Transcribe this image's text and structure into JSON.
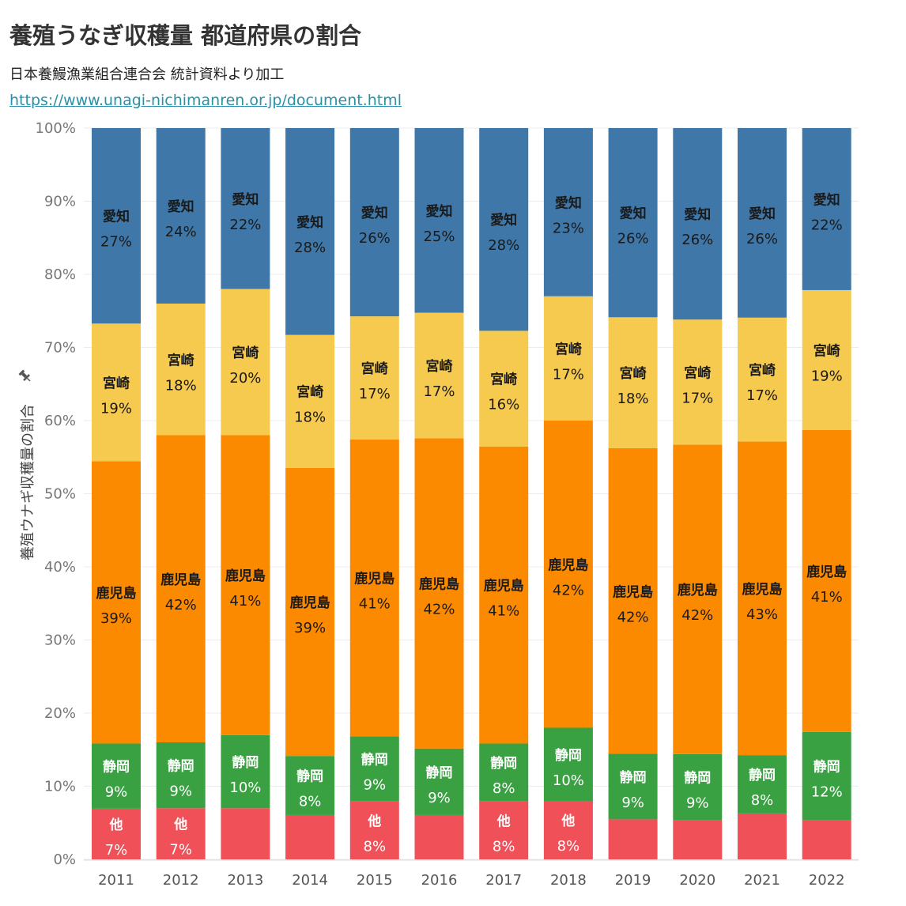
{
  "header": {
    "title": "養殖うなぎ収穫量 都道府県の割合",
    "subtitle": "日本養鰻漁業組合連合会 統計資料より加工",
    "link": "https://www.unagi-nichimanren.or.jp/document.html"
  },
  "icons": {
    "pin": "pin-icon"
  },
  "colors": {
    "愛知": "#3e77a8",
    "宮崎": "#f6c94f",
    "鹿児島": "#fb8a00",
    "静岡": "#3aa142",
    "他": "#f05058",
    "label_dark": "#1a1a1a",
    "label_light": "#ffffff"
  },
  "chart_data": {
    "type": "bar",
    "stacked": true,
    "normalized": true,
    "title": "養殖うなぎ収穫量 都道府県の割合",
    "xlabel": "",
    "ylabel": "養殖ウナギ収穫量の割合",
    "ylim": [
      0,
      100
    ],
    "y_ticks": [
      "0%",
      "10%",
      "20%",
      "30%",
      "40%",
      "50%",
      "60%",
      "70%",
      "80%",
      "90%",
      "100%"
    ],
    "grid": true,
    "legend": "none",
    "categories": [
      "2011",
      "2012",
      "2013",
      "2014",
      "2015",
      "2016",
      "2017",
      "2018",
      "2019",
      "2020",
      "2021",
      "2022"
    ],
    "series": [
      {
        "name": "他",
        "values": [
          7,
          7,
          7,
          6,
          8,
          6,
          8,
          8,
          5.5,
          5.3,
          6.3,
          5.3
        ],
        "labels": [
          "7%",
          "7%",
          "",
          "",
          "8%",
          "",
          "8%",
          "8%",
          "",
          "",
          "",
          ""
        ]
      },
      {
        "name": "静岡",
        "values": [
          9,
          9,
          10,
          8,
          9,
          9,
          8,
          10,
          9,
          9,
          8,
          12
        ],
        "labels": [
          "9%",
          "9%",
          "10%",
          "8%",
          "9%",
          "9%",
          "8%",
          "10%",
          "9%",
          "9%",
          "8%",
          "12%"
        ]
      },
      {
        "name": "鹿児島",
        "values": [
          39,
          42,
          41,
          39,
          41,
          42,
          41,
          42,
          42,
          42,
          43,
          41
        ],
        "labels": [
          "39%",
          "42%",
          "41%",
          "39%",
          "41%",
          "42%",
          "41%",
          "42%",
          "42%",
          "42%",
          "43%",
          "41%"
        ]
      },
      {
        "name": "宮崎",
        "values": [
          19,
          18,
          20,
          18,
          17,
          17,
          16,
          17,
          18,
          17,
          17,
          19
        ],
        "labels": [
          "19%",
          "18%",
          "20%",
          "18%",
          "17%",
          "17%",
          "16%",
          "17%",
          "18%",
          "17%",
          "17%",
          "19%"
        ]
      },
      {
        "name": "愛知",
        "values": [
          27,
          24,
          22,
          28,
          26,
          25,
          28,
          23,
          26,
          26,
          26,
          22
        ],
        "labels": [
          "27%",
          "24%",
          "22%",
          "28%",
          "26%",
          "25%",
          "28%",
          "23%",
          "26%",
          "26%",
          "26%",
          "22%"
        ]
      }
    ]
  }
}
